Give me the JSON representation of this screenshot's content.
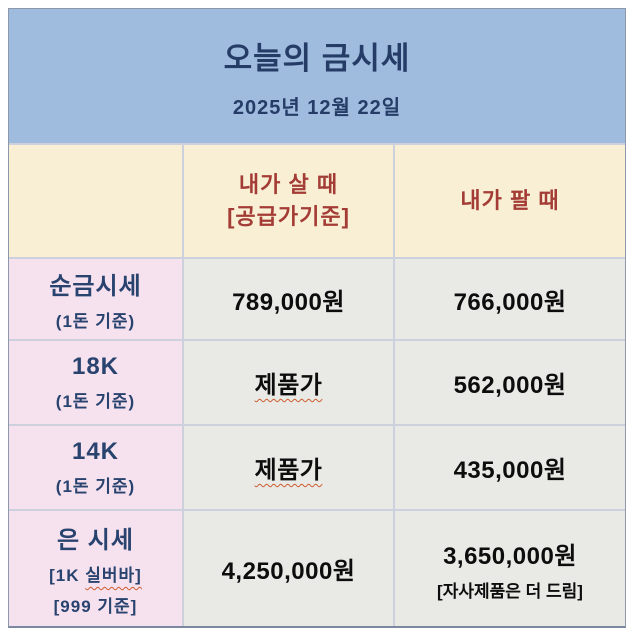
{
  "header": {
    "title": "오늘의 금시세",
    "date": "2025년 12월 22일"
  },
  "columns": {
    "buy_line1": "내가 살 때",
    "buy_line2": "[공급가기준]",
    "sell": "내가 팔 때"
  },
  "rows": [
    {
      "name": "순금시세",
      "sub1": "(1돈 기준)",
      "buy": "789,000원",
      "sell": "766,000원"
    },
    {
      "name": "18K",
      "sub1": "(1돈 기준)",
      "buy": "제품가",
      "sell": "562,000원"
    },
    {
      "name": "14K",
      "sub1": "(1돈 기준)",
      "buy": "제품가",
      "sell": "435,000원"
    },
    {
      "name": "은 시세",
      "sub1_part1": "[1K ",
      "sub1_part2": "실버바]",
      "sub2": "[999 기준]",
      "buy": "4,250,000원",
      "sell": "3,650,000원",
      "sell_note": "[자사제품은 더 드림]"
    }
  ],
  "colors": {
    "header_bg": "#9fbcdf",
    "navy_text": "#253c66",
    "colhead_bg": "#f9efd4",
    "red_text": "#a43c36",
    "label_bg": "#f6e1ef",
    "value_bg": "#e9e9e6",
    "grid_border": "#ccd1dd",
    "spellcheck_underline": "#cd5b2d"
  }
}
